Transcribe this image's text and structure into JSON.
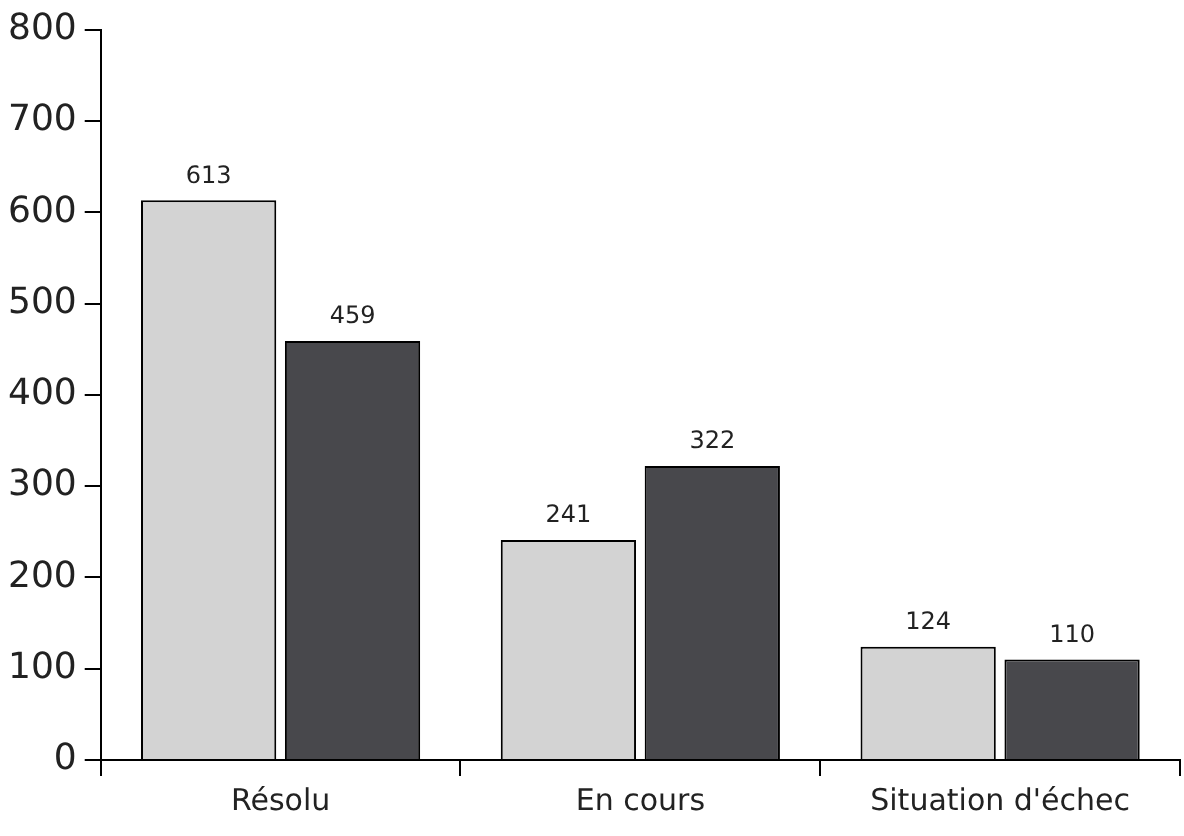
{
  "chart_data": {
    "type": "bar",
    "categories": [
      "Résolu",
      "En cours",
      "Situation d'échec"
    ],
    "series": [
      {
        "color": "#d3d3d3",
        "values": [
          613,
          241,
          124
        ]
      },
      {
        "color": "#48484c",
        "values": [
          459,
          322,
          110
        ]
      }
    ],
    "ylim": [
      0,
      800
    ],
    "yticks": [
      0,
      100,
      200,
      300,
      400,
      500,
      600,
      700,
      800
    ],
    "data_labels": true
  }
}
